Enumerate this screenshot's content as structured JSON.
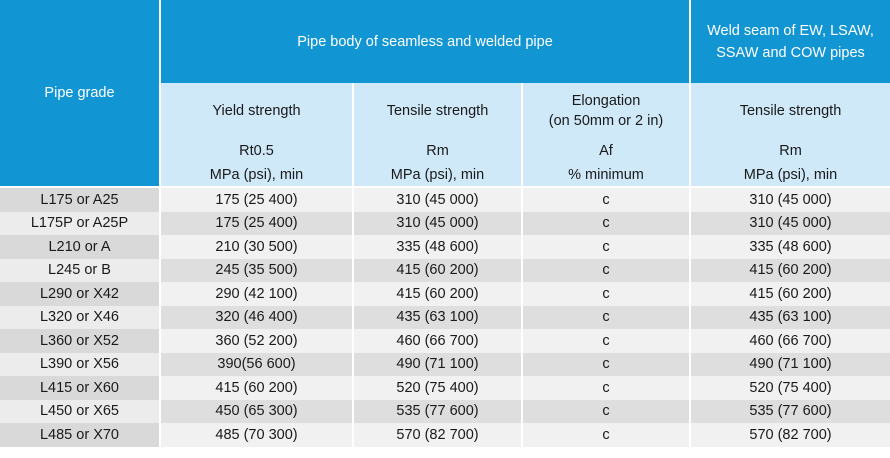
{
  "header": {
    "pipe_grade": "Pipe grade",
    "pipe_body": "Pipe body of seamless and welded pipe",
    "weld_seam": "Weld seam of EW, LSAW, SSAW and COW pipes",
    "columns": [
      {
        "name": "Yield strength",
        "symbol": "Rt0.5",
        "unit": "MPa (psi), min"
      },
      {
        "name": "Tensile strength",
        "symbol": "Rm",
        "unit": "MPa (psi), min"
      },
      {
        "name": "Elongation\n(on 50mm or 2 in)",
        "symbol": "Af",
        "unit": "% minimum"
      },
      {
        "name": "Tensile strength",
        "symbol": "Rm",
        "unit": "MPa (psi), min"
      }
    ]
  },
  "rows": [
    [
      "L175 or A25",
      "175 (25 400)",
      "310 (45 000)",
      "c",
      "310 (45 000)"
    ],
    [
      "L175P or A25P",
      "175 (25 400)",
      "310 (45 000)",
      "c",
      "310 (45 000)"
    ],
    [
      "L210 or A",
      "210 (30 500)",
      "335 (48 600)",
      "c",
      "335 (48 600)"
    ],
    [
      "L245 or B",
      "245 (35 500)",
      "415 (60 200)",
      "c",
      "415 (60 200)"
    ],
    [
      "L290 or X42",
      "290 (42 100)",
      "415 (60 200)",
      "c",
      "415 (60 200)"
    ],
    [
      "L320 or X46",
      "320 (46 400)",
      "435 (63 100)",
      "c",
      "435 (63 100)"
    ],
    [
      "L360 or X52",
      "360 (52 200)",
      "460 (66 700)",
      "c",
      "460 (66 700)"
    ],
    [
      "L390 or X56",
      "390(56 600)",
      "490 (71 100)",
      "c",
      "490 (71 100)"
    ],
    [
      "L415 or X60",
      "415 (60 200)",
      "520 (75 400)",
      "c",
      "520 (75 400)"
    ],
    [
      "L450 or X65",
      "450 (65 300)",
      "535 (77 600)",
      "c",
      "535 (77 600)"
    ],
    [
      "L485 or X70",
      "485 (70 300)",
      "570 (82 700)",
      "c",
      "570 (82 700)"
    ]
  ],
  "colors": {
    "header_blue": "#1295d3",
    "subheader_light_blue": "#cfe9f8",
    "row_dark": "#dedede",
    "row_light": "#f1f1f1"
  }
}
